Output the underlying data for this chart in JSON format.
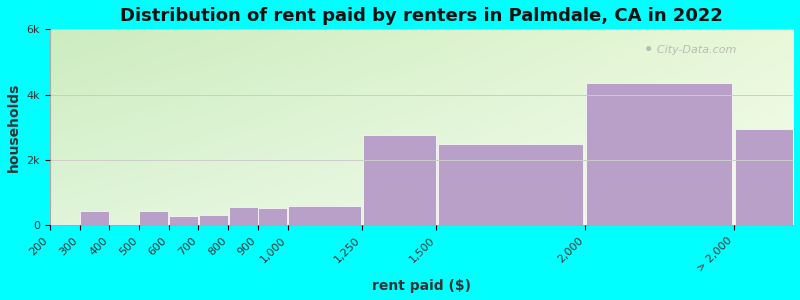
{
  "title": "Distribution of rent paid by renters in Palmdale, CA in 2022",
  "xlabel": "rent paid ($)",
  "ylabel": "households",
  "background_color": "#00FFFF",
  "bar_color": "#b9a0c8",
  "bar_edge_color": "#ffffff",
  "bin_edges": [
    200,
    300,
    400,
    500,
    600,
    700,
    800,
    900,
    1000,
    1250,
    1500,
    2000,
    2500,
    3000
  ],
  "values": [
    30,
    430,
    30,
    450,
    280,
    330,
    560,
    530,
    600,
    2750,
    2500,
    4350,
    2950,
    0
  ],
  "xtick_positions": [
    200,
    300,
    400,
    500,
    600,
    700,
    800,
    900,
    1000,
    1250,
    1500,
    2000,
    2500
  ],
  "xtick_labels": [
    "200",
    "300",
    "400",
    "500",
    "600",
    "700",
    "800",
    "900",
    "1,000",
    "1,250",
    "1,500",
    "2,000",
    "> 2,000"
  ],
  "ylim": [
    0,
    6000
  ],
  "xlim": [
    200,
    2700
  ],
  "yticks": [
    0,
    2000,
    4000,
    6000
  ],
  "ytick_labels": [
    "0",
    "2k",
    "4k",
    "6k"
  ],
  "title_fontsize": 13,
  "axis_label_fontsize": 10,
  "tick_fontsize": 8,
  "gradient_topleft": "#ccecc0",
  "gradient_topright": "#e8f8d8",
  "gradient_bottomleft": "#e0f5d8",
  "gradient_bottomright": "#f5fcf0"
}
